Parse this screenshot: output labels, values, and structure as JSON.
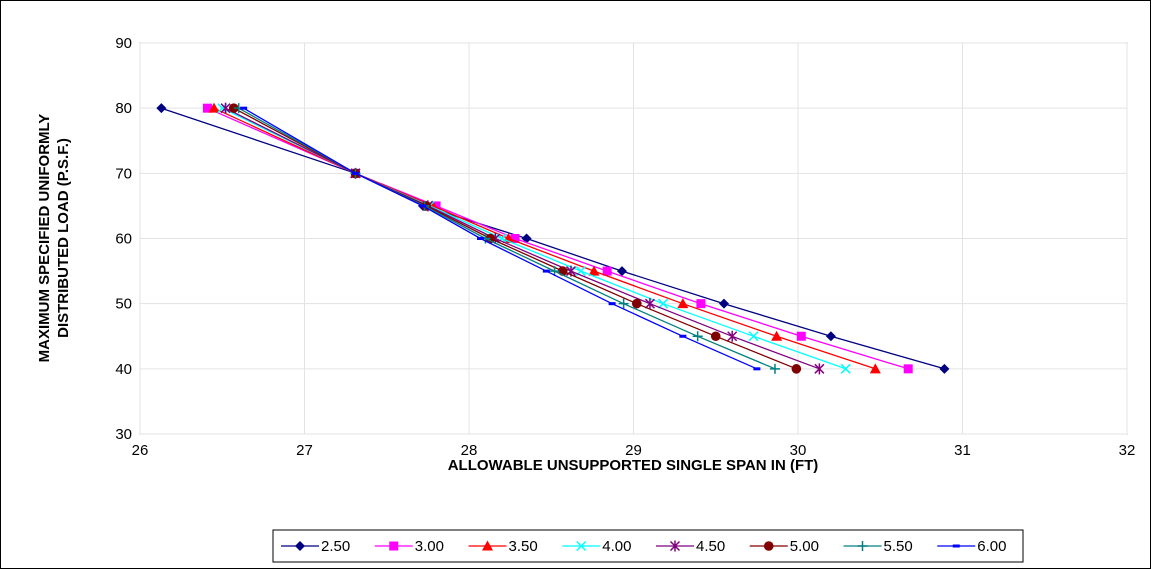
{
  "chart_data": {
    "type": "line",
    "title": "",
    "xlabel": "ALLOWABLE UNSUPPORTED SINGLE SPAN IN (FT)",
    "ylabel_lines": [
      "MAXIMUM SPECIFIED UNIFORMLY",
      "DISTRIBUTED LOAD (P.S.F.)"
    ],
    "xlim": [
      26,
      32
    ],
    "ylim": [
      30,
      90
    ],
    "xticks": [
      26,
      27,
      28,
      29,
      30,
      31,
      32
    ],
    "yticks": [
      30,
      40,
      50,
      60,
      70,
      80,
      90
    ],
    "grid": true,
    "legend_position": "bottom",
    "series": [
      {
        "name": "2.50",
        "color": "#000080",
        "marker": "diamond",
        "x": [
          26.13,
          27.31,
          27.72,
          28.35,
          28.93,
          29.55,
          30.2,
          30.89
        ],
        "y": [
          80,
          70,
          65,
          60,
          55,
          50,
          45,
          40
        ]
      },
      {
        "name": "3.00",
        "color": "#FF00FF",
        "marker": "square",
        "x": [
          26.41,
          27.31,
          27.8,
          28.28,
          28.84,
          29.41,
          30.02,
          30.67
        ],
        "y": [
          80,
          70,
          65,
          60,
          55,
          50,
          45,
          40
        ]
      },
      {
        "name": "3.50",
        "color": "#FF0000",
        "marker": "triangle",
        "x": [
          26.45,
          27.31,
          27.78,
          28.24,
          28.76,
          29.3,
          29.87,
          30.47
        ],
        "y": [
          80,
          70,
          65,
          60,
          55,
          50,
          45,
          40
        ]
      },
      {
        "name": "4.00",
        "color": "#00FFFF",
        "marker": "x",
        "x": [
          26.5,
          27.31,
          27.76,
          28.2,
          28.68,
          29.18,
          29.73,
          30.29
        ],
        "y": [
          80,
          70,
          65,
          60,
          55,
          50,
          45,
          40
        ]
      },
      {
        "name": "4.50",
        "color": "#800080",
        "marker": "star",
        "x": [
          26.52,
          27.31,
          27.75,
          28.16,
          28.62,
          29.1,
          29.6,
          30.13
        ],
        "y": [
          80,
          70,
          65,
          60,
          55,
          50,
          45,
          40
        ]
      },
      {
        "name": "5.00",
        "color": "#800000",
        "marker": "circle",
        "x": [
          26.57,
          27.31,
          27.74,
          28.13,
          28.57,
          29.02,
          29.5,
          29.99
        ],
        "y": [
          80,
          70,
          65,
          60,
          55,
          50,
          45,
          40
        ]
      },
      {
        "name": "5.50",
        "color": "#008080",
        "marker": "plus",
        "x": [
          26.6,
          27.31,
          27.73,
          28.1,
          28.52,
          28.94,
          29.39,
          29.86
        ],
        "y": [
          80,
          70,
          65,
          60,
          55,
          50,
          45,
          40
        ]
      },
      {
        "name": "6.00",
        "color": "#0000FF",
        "marker": "dash",
        "x": [
          26.63,
          27.31,
          27.72,
          28.07,
          28.47,
          28.87,
          29.3,
          29.75
        ],
        "y": [
          80,
          70,
          65,
          60,
          55,
          50,
          45,
          40
        ]
      }
    ]
  }
}
